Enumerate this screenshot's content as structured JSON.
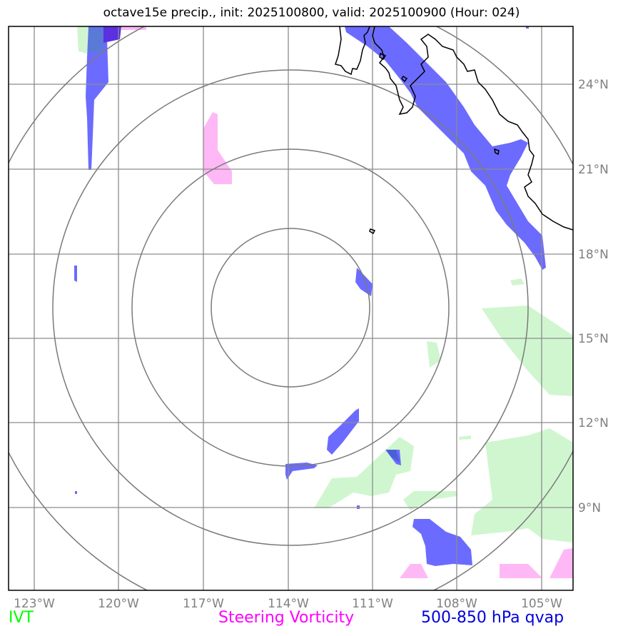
{
  "title": "octave15e precip., init: 2025100800, valid: 2025100900 (Hour: 024)",
  "x_ticks": [
    "123°W",
    "120°W",
    "117°W",
    "114°W",
    "111°W",
    "108°W",
    "105°W"
  ],
  "y_ticks": [
    "24°N",
    "21°N",
    "18°N",
    "15°N",
    "12°N",
    "9°N"
  ],
  "legend": {
    "ivt": {
      "label": "IVT",
      "color": "#00ff00"
    },
    "vorticity": {
      "label": "Steering Vorticity",
      "color": "#ff00ff"
    },
    "qvap": {
      "label": "500-850 hPa qvap",
      "color": "#0000dd"
    }
  },
  "colors": {
    "ivt_fill": "#c8f5c8",
    "vorticity_fill": "#ffb0f5",
    "qvap_fill": "#6b6bff",
    "grid": "#8c8c8c",
    "range_ring": "#7a7a7a",
    "coastline": "#000000"
  }
}
